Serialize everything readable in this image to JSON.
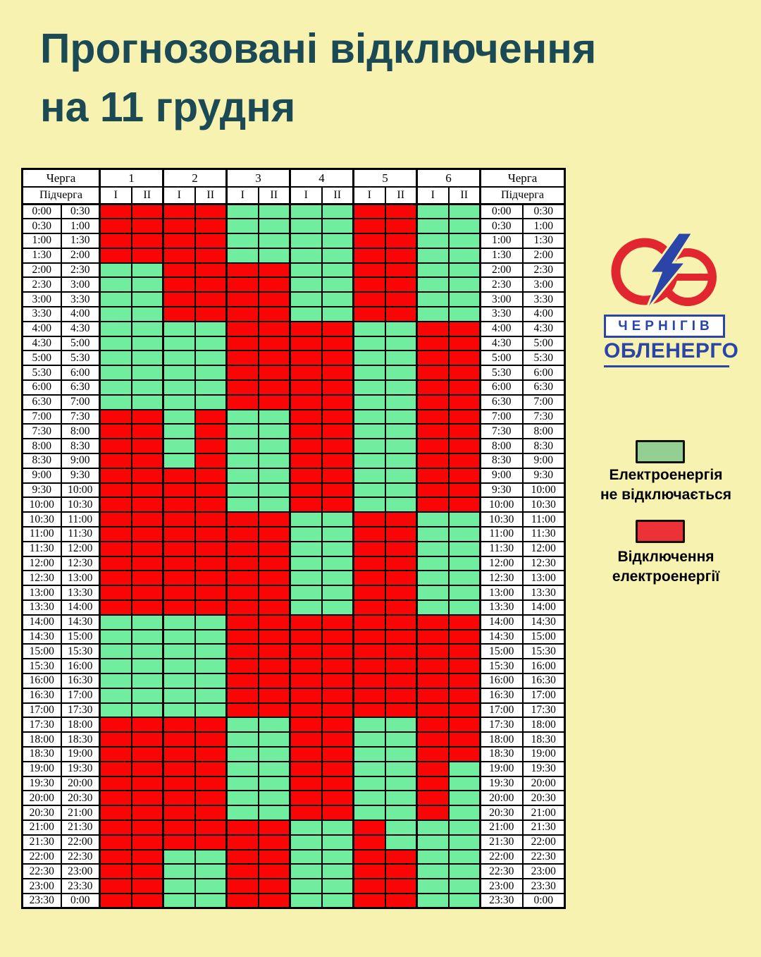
{
  "title": {
    "line1": "Прогнозовані відключення",
    "line2": "на 11 грудня",
    "color": "#1B4A55"
  },
  "logo": {
    "company_name": "Чернігівобленерго",
    "city": "ЧЕРНІГІВ",
    "company": "ОБЛЕНЕРГО",
    "circle_color": "#E2262F",
    "bolt_color": "#2A44A7",
    "text_color": "#2A44A7"
  },
  "legend": {
    "items": [
      {
        "state": "on",
        "swatch_color": "#93CE92",
        "label_lines": [
          "Електроенергія",
          "не відключається"
        ]
      },
      {
        "state": "off",
        "swatch_color": "#EC3237",
        "label_lines": [
          "Відключення",
          "електроенергії"
        ]
      }
    ]
  },
  "schedule": {
    "queue_header_label": "Черга",
    "subqueue_header_label": "Підчерга",
    "queues": [
      "1",
      "2",
      "3",
      "4",
      "5",
      "6"
    ],
    "subqueues": [
      "I",
      "II"
    ],
    "cell_colors": {
      "G": "#71EDA0",
      "R": "#F90505"
    },
    "cell_meaning": {
      "G": "power-on",
      "R": "power-off"
    },
    "time_slots": [
      [
        "0:00",
        "0:30"
      ],
      [
        "0:30",
        "1:00"
      ],
      [
        "1:00",
        "1:30"
      ],
      [
        "1:30",
        "2:00"
      ],
      [
        "2:00",
        "2:30"
      ],
      [
        "2:30",
        "3:00"
      ],
      [
        "3:00",
        "3:30"
      ],
      [
        "3:30",
        "4:00"
      ],
      [
        "4:00",
        "4:30"
      ],
      [
        "4:30",
        "5:00"
      ],
      [
        "5:00",
        "5:30"
      ],
      [
        "5:30",
        "6:00"
      ],
      [
        "6:00",
        "6:30"
      ],
      [
        "6:30",
        "7:00"
      ],
      [
        "7:00",
        "7:30"
      ],
      [
        "7:30",
        "8:00"
      ],
      [
        "8:00",
        "8:30"
      ],
      [
        "8:30",
        "9:00"
      ],
      [
        "9:00",
        "9:30"
      ],
      [
        "9:30",
        "10:00"
      ],
      [
        "10:00",
        "10:30"
      ],
      [
        "10:30",
        "11:00"
      ],
      [
        "11:00",
        "11:30"
      ],
      [
        "11:30",
        "12:00"
      ],
      [
        "12:00",
        "12:30"
      ],
      [
        "12:30",
        "13:00"
      ],
      [
        "13:00",
        "13:30"
      ],
      [
        "13:30",
        "14:00"
      ],
      [
        "14:00",
        "14:30"
      ],
      [
        "14:30",
        "15:00"
      ],
      [
        "15:00",
        "15:30"
      ],
      [
        "15:30",
        "16:00"
      ],
      [
        "16:00",
        "16:30"
      ],
      [
        "16:30",
        "17:00"
      ],
      [
        "17:00",
        "17:30"
      ],
      [
        "17:30",
        "18:00"
      ],
      [
        "18:00",
        "18:30"
      ],
      [
        "18:30",
        "19:00"
      ],
      [
        "19:00",
        "19:30"
      ],
      [
        "19:30",
        "20:00"
      ],
      [
        "20:00",
        "20:30"
      ],
      [
        "20:30",
        "21:00"
      ],
      [
        "21:00",
        "21:30"
      ],
      [
        "21:30",
        "22:00"
      ],
      [
        "22:00",
        "22:30"
      ],
      [
        "22:30",
        "23:00"
      ],
      [
        "23:00",
        "23:30"
      ],
      [
        "23:30",
        "0:00"
      ]
    ],
    "rows": [
      "RRRRGGGGRRGG",
      "RRRRGGGGRRGG",
      "RRRRGGGGRRGG",
      "RRRRGGGGRRGG",
      "GGRRRRGGRRGG",
      "GGRRRRGGRRGG",
      "GGRRRRGGRRGG",
      "GGRRRRGGRRGG",
      "GGGGRRRRGGRR",
      "GGGGRRRRGGRR",
      "GGGGRRRRGGRR",
      "GGGGRRRRGGRR",
      "GGGGRRRRGGRR",
      "GGGGRRRRGGRR",
      "RRGRGGRRGGRR",
      "RRGRGGRRGGRR",
      "RRGRGGRRGGRR",
      "RRGRGGRRGGRR",
      "RRRRGGRRGGRR",
      "RRRRGGRRGGRR",
      "RRRRGGRRGGRR",
      "RRRRRRGGRRGG",
      "RRRRRRGGRRGG",
      "RRRRRRGGRRGG",
      "RRRRRRGGRRGG",
      "RRRRRRGGRRGG",
      "RRRRRRGGRRGG",
      "RRRRRRGGRRGG",
      "GGGGRRRRRRRR",
      "GGGGRRRRRRRR",
      "GGGGRRRRRRRR",
      "GGGGRRRRRRRR",
      "GGGGRRRRRRRR",
      "GGGGRRRRRRRR",
      "GGGGRRRRRRRR",
      "RRRRGGRRGGRR",
      "RRRRGGRRGGRR",
      "RRRRGGRRGGRR",
      "RRRRGGRRGGRG",
      "RRRRGGRRGGRG",
      "RRRRGGRRGGRG",
      "RRRRGGRRGGRG",
      "RRRRRRGGRGGG",
      "RRRRRRGGRGGG",
      "RRGGRRGGRRGG",
      "RRGGRRGGRRGG",
      "RRGGRRGGRRGG",
      "RRGGRRGGRRGG"
    ]
  }
}
